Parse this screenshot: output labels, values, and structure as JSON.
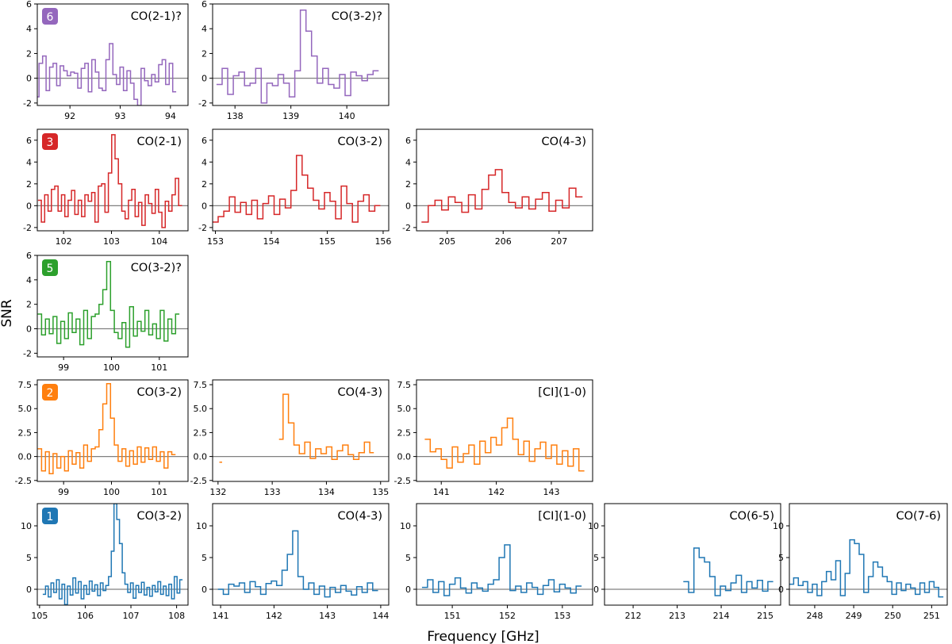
{
  "figure": {
    "xlabel": "Frequency [GHz]",
    "ylabel": "SNR",
    "colors": {
      "6": "#9467bd",
      "3": "#d62728",
      "5": "#2ca02c",
      "2": "#ff7f0e",
      "1": "#1f77b4",
      "zero_line": "#808080"
    }
  },
  "chart_data": [
    {
      "type": "line",
      "source": "6",
      "line": "CO(2-1)?",
      "xlim": [
        91.35,
        94.35
      ],
      "ylim": [
        -2.2,
        6
      ],
      "xticks": [
        92,
        93,
        94
      ],
      "yticks": [
        -2,
        0,
        2,
        4,
        6
      ],
      "step_x": [
        91.35,
        91.42,
        91.49,
        91.56,
        91.63,
        91.7,
        91.77,
        91.84,
        91.91,
        91.98,
        92.05,
        92.12,
        92.19,
        92.26,
        92.33,
        92.4,
        92.47,
        92.54,
        92.61,
        92.68,
        92.75,
        92.82,
        92.89,
        92.96,
        93.03,
        93.1,
        93.17,
        93.24,
        93.31,
        93.38,
        93.45,
        93.52,
        93.59,
        93.66,
        93.73,
        93.8,
        93.87,
        93.94,
        94.01,
        94.08
      ],
      "step_y": [
        -1.5,
        1.2,
        1.8,
        -1,
        0.9,
        1.2,
        -0.6,
        1.0,
        0.6,
        0.2,
        0.5,
        0.4,
        -0.8,
        0.8,
        1.2,
        -1.1,
        1.5,
        0.5,
        -0.8,
        -1.0,
        1.5,
        2.8,
        0.3,
        -0.5,
        0.9,
        -1.0,
        0.6,
        -0.4,
        -1.7,
        -2.2,
        0.8,
        -0.2,
        -0.6,
        0.3,
        -0.3,
        1.1,
        1.5,
        -0.5,
        1.2,
        -1.1
      ]
    },
    {
      "type": "line",
      "source": "6",
      "line": "CO(3-2)?",
      "xlim": [
        137.6,
        140.75
      ],
      "ylim": [
        -2.2,
        6
      ],
      "xticks": [
        138,
        139,
        140
      ],
      "yticks": [
        -2,
        0,
        2,
        4,
        6
      ],
      "step_x": [
        137.72,
        137.82,
        137.92,
        138.02,
        138.12,
        138.22,
        138.32,
        138.42,
        138.52,
        138.62,
        138.72,
        138.82,
        138.92,
        139.02,
        139.12,
        139.22,
        139.32,
        139.42,
        139.52,
        139.62,
        139.72,
        139.82,
        139.92,
        140.02,
        140.12,
        140.22,
        140.32,
        140.42,
        140.52
      ],
      "step_y": [
        -0.5,
        0.8,
        -1.3,
        0.2,
        0.5,
        -0.6,
        -0.4,
        0.8,
        -2.0,
        -0.4,
        -0.6,
        0.3,
        -0.4,
        -1.5,
        0.6,
        5.5,
        3.8,
        1.8,
        -0.4,
        0.8,
        -0.5,
        -0.8,
        0.3,
        -1.4,
        0.5,
        0.2,
        -0.2,
        0.3,
        0.6
      ]
    },
    {
      "type": "line",
      "source": "3",
      "line": "CO(2-1)",
      "xlim": [
        101.45,
        104.6
      ],
      "ylim": [
        -2.3,
        7
      ],
      "xticks": [
        102,
        103,
        104
      ],
      "yticks": [
        -2,
        0,
        2,
        4,
        6
      ],
      "step_x": [
        101.5,
        101.57,
        101.64,
        101.71,
        101.78,
        101.85,
        101.92,
        101.99,
        102.06,
        102.13,
        102.2,
        102.27,
        102.34,
        102.41,
        102.48,
        102.55,
        102.62,
        102.69,
        102.76,
        102.83,
        102.9,
        102.97,
        103.04,
        103.11,
        103.18,
        103.25,
        103.32,
        103.39,
        103.46,
        103.53,
        103.6,
        103.67,
        103.74,
        103.81,
        103.88,
        103.95,
        104.02,
        104.09,
        104.16,
        104.23,
        104.3,
        104.37,
        104.44
      ],
      "step_y": [
        0.5,
        -1.5,
        1.0,
        -0.5,
        1.5,
        1.8,
        -0.5,
        1.0,
        -1.0,
        0.5,
        1.4,
        -0.8,
        0.5,
        -1.0,
        1.0,
        0.4,
        1.2,
        -1.5,
        1.8,
        2.0,
        -0.6,
        3.0,
        6.5,
        4.3,
        2.0,
        -0.5,
        -1.2,
        0.5,
        1.5,
        -1.0,
        0.3,
        -1.8,
        1.0,
        0.2,
        -0.7,
        1.5,
        -0.6,
        -2.0,
        0.4,
        -0.5,
        1.0,
        2.5,
        0.0
      ]
    },
    {
      "type": "line",
      "source": "3",
      "line": "CO(3-2)",
      "xlim": [
        152.95,
        156.1
      ],
      "ylim": [
        -2.3,
        7
      ],
      "xticks": [
        153,
        154,
        155,
        156
      ],
      "yticks": [
        -2,
        0,
        2,
        4,
        6
      ],
      "step_x": [
        153.0,
        153.1,
        153.2,
        153.3,
        153.4,
        153.5,
        153.6,
        153.7,
        153.8,
        153.9,
        154.0,
        154.1,
        154.2,
        154.3,
        154.4,
        154.5,
        154.6,
        154.7,
        154.8,
        154.9,
        155.0,
        155.1,
        155.2,
        155.3,
        155.4,
        155.5,
        155.6,
        155.7,
        155.8,
        155.9
      ],
      "step_y": [
        -1.5,
        -1.0,
        -0.5,
        0.8,
        -0.6,
        0.3,
        -0.8,
        0.5,
        -1.2,
        0.2,
        0.9,
        -0.8,
        0.6,
        -0.2,
        1.4,
        4.6,
        2.8,
        1.6,
        0.5,
        -0.3,
        1.2,
        0.4,
        -1.2,
        1.8,
        0.2,
        -1.5,
        0.4,
        1.0,
        -0.5,
        0.0
      ]
    },
    {
      "type": "line",
      "source": "3",
      "line": "CO(4-3)",
      "xlim": [
        204.45,
        207.6
      ],
      "ylim": [
        -2.3,
        7
      ],
      "xticks": [
        205,
        206,
        207
      ],
      "yticks": [
        -2,
        0,
        2,
        4,
        6
      ],
      "step_x": [
        204.6,
        204.72,
        204.84,
        204.96,
        205.08,
        205.2,
        205.32,
        205.44,
        205.56,
        205.68,
        205.8,
        205.92,
        206.04,
        206.16,
        206.28,
        206.4,
        206.52,
        206.64,
        206.76,
        206.88,
        207.0,
        207.12,
        207.24,
        207.36
      ],
      "step_y": [
        -1.5,
        0.0,
        0.5,
        -0.4,
        0.8,
        0.3,
        -0.6,
        1.0,
        -0.3,
        1.5,
        2.8,
        3.3,
        1.2,
        0.3,
        -0.2,
        0.8,
        -0.3,
        0.6,
        1.2,
        -0.5,
        0.5,
        -0.2,
        1.6,
        0.8
      ]
    },
    {
      "type": "line",
      "source": "5",
      "line": "CO(3-2)?",
      "xlim": [
        98.45,
        101.6
      ],
      "ylim": [
        -2.3,
        6
      ],
      "xticks": [
        99,
        100,
        101
      ],
      "yticks": [
        -2,
        0,
        2,
        4,
        6
      ],
      "step_x": [
        98.5,
        98.58,
        98.66,
        98.74,
        98.82,
        98.9,
        98.98,
        99.06,
        99.14,
        99.22,
        99.3,
        99.38,
        99.46,
        99.54,
        99.62,
        99.7,
        99.78,
        99.86,
        99.94,
        100.02,
        100.1,
        100.18,
        100.26,
        100.34,
        100.42,
        100.5,
        100.58,
        100.66,
        100.74,
        100.82,
        100.9,
        100.98,
        101.06,
        101.14,
        101.22,
        101.3,
        101.38
      ],
      "step_y": [
        1.2,
        -0.5,
        0.8,
        -0.4,
        1.0,
        -1.2,
        0.6,
        -0.8,
        1.3,
        -0.3,
        0.8,
        -1.3,
        1.5,
        -0.8,
        1.0,
        1.2,
        2.0,
        3.2,
        5.5,
        1.5,
        -0.3,
        -0.8,
        0.5,
        -1.5,
        1.8,
        -0.6,
        0.6,
        -0.2,
        1.5,
        -0.5,
        0.4,
        -0.8,
        1.5,
        -1.0,
        0.8,
        -0.4,
        1.2
      ]
    },
    {
      "type": "line",
      "source": "2",
      "line": "CO(3-2)",
      "xlim": [
        98.45,
        101.6
      ],
      "ylim": [
        -2.6,
        8
      ],
      "xticks": [
        99,
        100,
        101
      ],
      "yticks": [
        -2.5,
        0.0,
        2.5,
        5.0,
        7.5
      ],
      "step_x": [
        98.5,
        98.58,
        98.66,
        98.74,
        98.82,
        98.9,
        98.98,
        99.06,
        99.14,
        99.22,
        99.3,
        99.38,
        99.46,
        99.54,
        99.62,
        99.7,
        99.78,
        99.86,
        99.94,
        100.02,
        100.1,
        100.18,
        100.26,
        100.34,
        100.42,
        100.5,
        100.58,
        100.66,
        100.74,
        100.82,
        100.9,
        100.98,
        101.06,
        101.14,
        101.22,
        101.3
      ],
      "step_y": [
        0.8,
        -1.5,
        0.5,
        -1.8,
        0.3,
        -1.2,
        0.0,
        -1.5,
        0.6,
        -0.8,
        0.4,
        -1.2,
        1.2,
        -0.5,
        0.8,
        1.0,
        2.8,
        5.5,
        7.6,
        4.0,
        1.2,
        -0.5,
        0.8,
        -1.0,
        0.6,
        -0.8,
        1.0,
        -0.6,
        0.9,
        -0.3,
        1.0,
        -0.5,
        0.5,
        -1.2,
        0.5,
        0.2
      ]
    },
    {
      "type": "line",
      "source": "2",
      "line": "CO(4-3)",
      "xlim": [
        131.9,
        135.15
      ],
      "ylim": [
        -2.6,
        8
      ],
      "xticks": [
        132,
        133,
        134,
        135
      ],
      "yticks": [
        -2.5,
        0.0,
        2.5,
        5.0,
        7.5
      ],
      "step_x": [
        132.05,
        132.1,
        133.15,
        133.25,
        133.35,
        133.45,
        133.55,
        133.65,
        133.75,
        133.85,
        133.95,
        134.05,
        134.15,
        134.25,
        134.35,
        134.45,
        134.55,
        134.65,
        134.75,
        134.85
      ],
      "step_y": [
        -0.6,
        null,
        1.8,
        6.5,
        3.5,
        1.2,
        0.3,
        1.5,
        -0.2,
        0.8,
        0.3,
        1.0,
        -0.3,
        0.6,
        1.2,
        0.2,
        -0.3,
        0.4,
        1.5,
        0.4
      ]
    },
    {
      "type": "line",
      "source": "2",
      "line": "[CI](1-0)",
      "xlim": [
        140.55,
        143.75
      ],
      "ylim": [
        -2.6,
        8
      ],
      "xticks": [
        141,
        142,
        143
      ],
      "yticks": [
        -2.5,
        0.0,
        2.5,
        5.0,
        7.5
      ],
      "step_x": [
        140.75,
        140.85,
        140.95,
        141.05,
        141.15,
        141.25,
        141.35,
        141.45,
        141.55,
        141.65,
        141.75,
        141.85,
        141.95,
        142.05,
        142.15,
        142.25,
        142.35,
        142.45,
        142.55,
        142.65,
        142.75,
        142.85,
        142.95,
        143.05,
        143.15,
        143.25,
        143.35,
        143.45,
        143.55
      ],
      "step_y": [
        1.8,
        0.5,
        0.8,
        -0.3,
        -1.2,
        1.0,
        -0.6,
        0.3,
        1.2,
        -0.8,
        1.6,
        0.4,
        2.0,
        1.2,
        3.0,
        4.0,
        1.8,
        0.2,
        1.6,
        -0.5,
        0.8,
        1.5,
        -0.2,
        1.2,
        -0.8,
        0.6,
        -1.0,
        0.8,
        -1.5
      ]
    },
    {
      "type": "line",
      "source": "1",
      "line": "CO(3-2)",
      "xlim": [
        104.95,
        108.25
      ],
      "ylim": [
        -2.5,
        13.5
      ],
      "xticks": [
        105,
        106,
        107,
        108
      ],
      "yticks": [
        0,
        5,
        10
      ],
      "step_x": [
        105.1,
        105.16,
        105.22,
        105.28,
        105.34,
        105.4,
        105.46,
        105.52,
        105.58,
        105.64,
        105.7,
        105.76,
        105.82,
        105.88,
        105.94,
        106.0,
        106.06,
        106.12,
        106.18,
        106.24,
        106.3,
        106.36,
        106.42,
        106.48,
        106.54,
        106.6,
        106.66,
        106.72,
        106.78,
        106.84,
        106.9,
        106.96,
        107.02,
        107.08,
        107.14,
        107.2,
        107.26,
        107.32,
        107.38,
        107.44,
        107.5,
        107.56,
        107.62,
        107.68,
        107.74,
        107.8,
        107.86,
        107.92,
        107.98,
        108.04,
        108.1
      ],
      "step_y": [
        -0.8,
        0.5,
        -1.2,
        1.0,
        -0.5,
        1.5,
        -1.5,
        0.8,
        -2.4,
        0.5,
        -0.9,
        1.8,
        -0.6,
        1.2,
        -1.5,
        0.6,
        -0.8,
        1.3,
        -0.3,
        0.7,
        -1.0,
        1.0,
        -0.2,
        0.6,
        2.0,
        6.0,
        13.5,
        11.0,
        7.2,
        2.6,
        0.8,
        -0.5,
        1.0,
        -1.4,
        0.6,
        -0.5,
        1.1,
        -0.9,
        0.3,
        -1.1,
        0.6,
        -0.4,
        1.2,
        -0.8,
        0.5,
        -1.0,
        0.8,
        -1.5,
        2.0,
        -0.6,
        1.5
      ]
    },
    {
      "type": "line",
      "source": "1",
      "line": "CO(4-3)",
      "xlim": [
        140.85,
        144.15
      ],
      "ylim": [
        -2.5,
        13.5
      ],
      "xticks": [
        141,
        142,
        143,
        144
      ],
      "yticks": [
        0,
        5,
        10
      ],
      "step_x": [
        141.0,
        141.1,
        141.2,
        141.3,
        141.4,
        141.5,
        141.6,
        141.7,
        141.8,
        141.9,
        142.0,
        142.1,
        142.2,
        142.3,
        142.4,
        142.5,
        142.6,
        142.7,
        142.8,
        142.9,
        143.0,
        143.1,
        143.2,
        143.3,
        143.4,
        143.5,
        143.6,
        143.7,
        143.8,
        143.9
      ],
      "step_y": [
        0.0,
        -0.8,
        0.8,
        0.5,
        1.0,
        -0.5,
        1.2,
        0.4,
        -0.8,
        0.9,
        1.3,
        0.6,
        3.0,
        5.5,
        9.2,
        2.0,
        0.0,
        1.0,
        -0.8,
        0.5,
        -1.2,
        0.3,
        -0.5,
        0.6,
        -0.3,
        -0.9,
        0.4,
        -0.5,
        1.0,
        -0.2
      ]
    },
    {
      "type": "line",
      "source": "1",
      "line": "[CI](1-0)",
      "xlim": [
        150.35,
        153.55
      ],
      "ylim": [
        -2.5,
        13.5
      ],
      "xticks": [
        151,
        152,
        153
      ],
      "yticks": [
        0,
        5,
        10
      ],
      "step_x": [
        150.5,
        150.6,
        150.7,
        150.8,
        150.9,
        151.0,
        151.1,
        151.2,
        151.3,
        151.4,
        151.5,
        151.6,
        151.7,
        151.8,
        151.9,
        152.0,
        152.1,
        152.2,
        152.3,
        152.4,
        152.5,
        152.6,
        152.7,
        152.8,
        152.9,
        153.0,
        153.1,
        153.2,
        153.3
      ],
      "step_y": [
        0.3,
        1.5,
        -0.5,
        1.2,
        -1.0,
        0.8,
        1.8,
        0.2,
        -0.6,
        1.0,
        0.2,
        -0.3,
        0.8,
        1.5,
        5.0,
        7.0,
        -0.2,
        0.5,
        -0.5,
        1.0,
        0.3,
        -0.8,
        0.6,
        1.5,
        -0.4,
        0.8,
        0.2,
        -0.6,
        0.5
      ]
    },
    {
      "type": "line",
      "source": "1",
      "line": "CO(6-5)",
      "xlim": [
        211.35,
        215.35
      ],
      "ylim": [
        -2.5,
        13.5
      ],
      "xticks": [
        212,
        213,
        214,
        215
      ],
      "yticks": [
        0,
        5,
        10
      ],
      "step_x": [
        213.2,
        213.32,
        213.44,
        213.56,
        213.68,
        213.8,
        213.92,
        214.04,
        214.16,
        214.28,
        214.4,
        214.52,
        214.64,
        214.76,
        214.88,
        215.0,
        215.12
      ],
      "step_y": [
        1.2,
        -0.5,
        6.5,
        5.0,
        4.3,
        2.0,
        -1.0,
        0.5,
        -0.2,
        1.0,
        2.2,
        -0.5,
        1.2,
        0.2,
        1.4,
        -0.3,
        1.2
      ]
    },
    {
      "type": "line",
      "source": "1",
      "line": "CO(7-6)",
      "xlim": [
        247.35,
        251.4
      ],
      "ylim": [
        -2.5,
        13.5
      ],
      "xticks": [
        248,
        249,
        250,
        251
      ],
      "yticks": [
        0,
        5,
        10
      ],
      "step_x": [
        247.4,
        247.52,
        247.64,
        247.76,
        247.88,
        248.0,
        248.12,
        248.24,
        248.36,
        248.48,
        248.6,
        248.72,
        248.84,
        248.96,
        249.08,
        249.2,
        249.32,
        249.44,
        249.56,
        249.68,
        249.8,
        249.92,
        250.04,
        250.16,
        250.28,
        250.4,
        250.52,
        250.64,
        250.76,
        250.88,
        251.0,
        251.12,
        251.24
      ],
      "step_y": [
        0.8,
        1.8,
        0.6,
        1.2,
        -0.5,
        0.8,
        -1.0,
        1.2,
        2.8,
        1.5,
        4.5,
        -1.0,
        2.5,
        7.8,
        7.2,
        5.5,
        -0.5,
        2.0,
        4.3,
        3.5,
        2.0,
        1.2,
        -0.8,
        1.0,
        -0.2,
        0.8,
        0.2,
        -0.8,
        1.0,
        -0.5,
        1.2,
        0.3,
        -1.2
      ]
    }
  ]
}
